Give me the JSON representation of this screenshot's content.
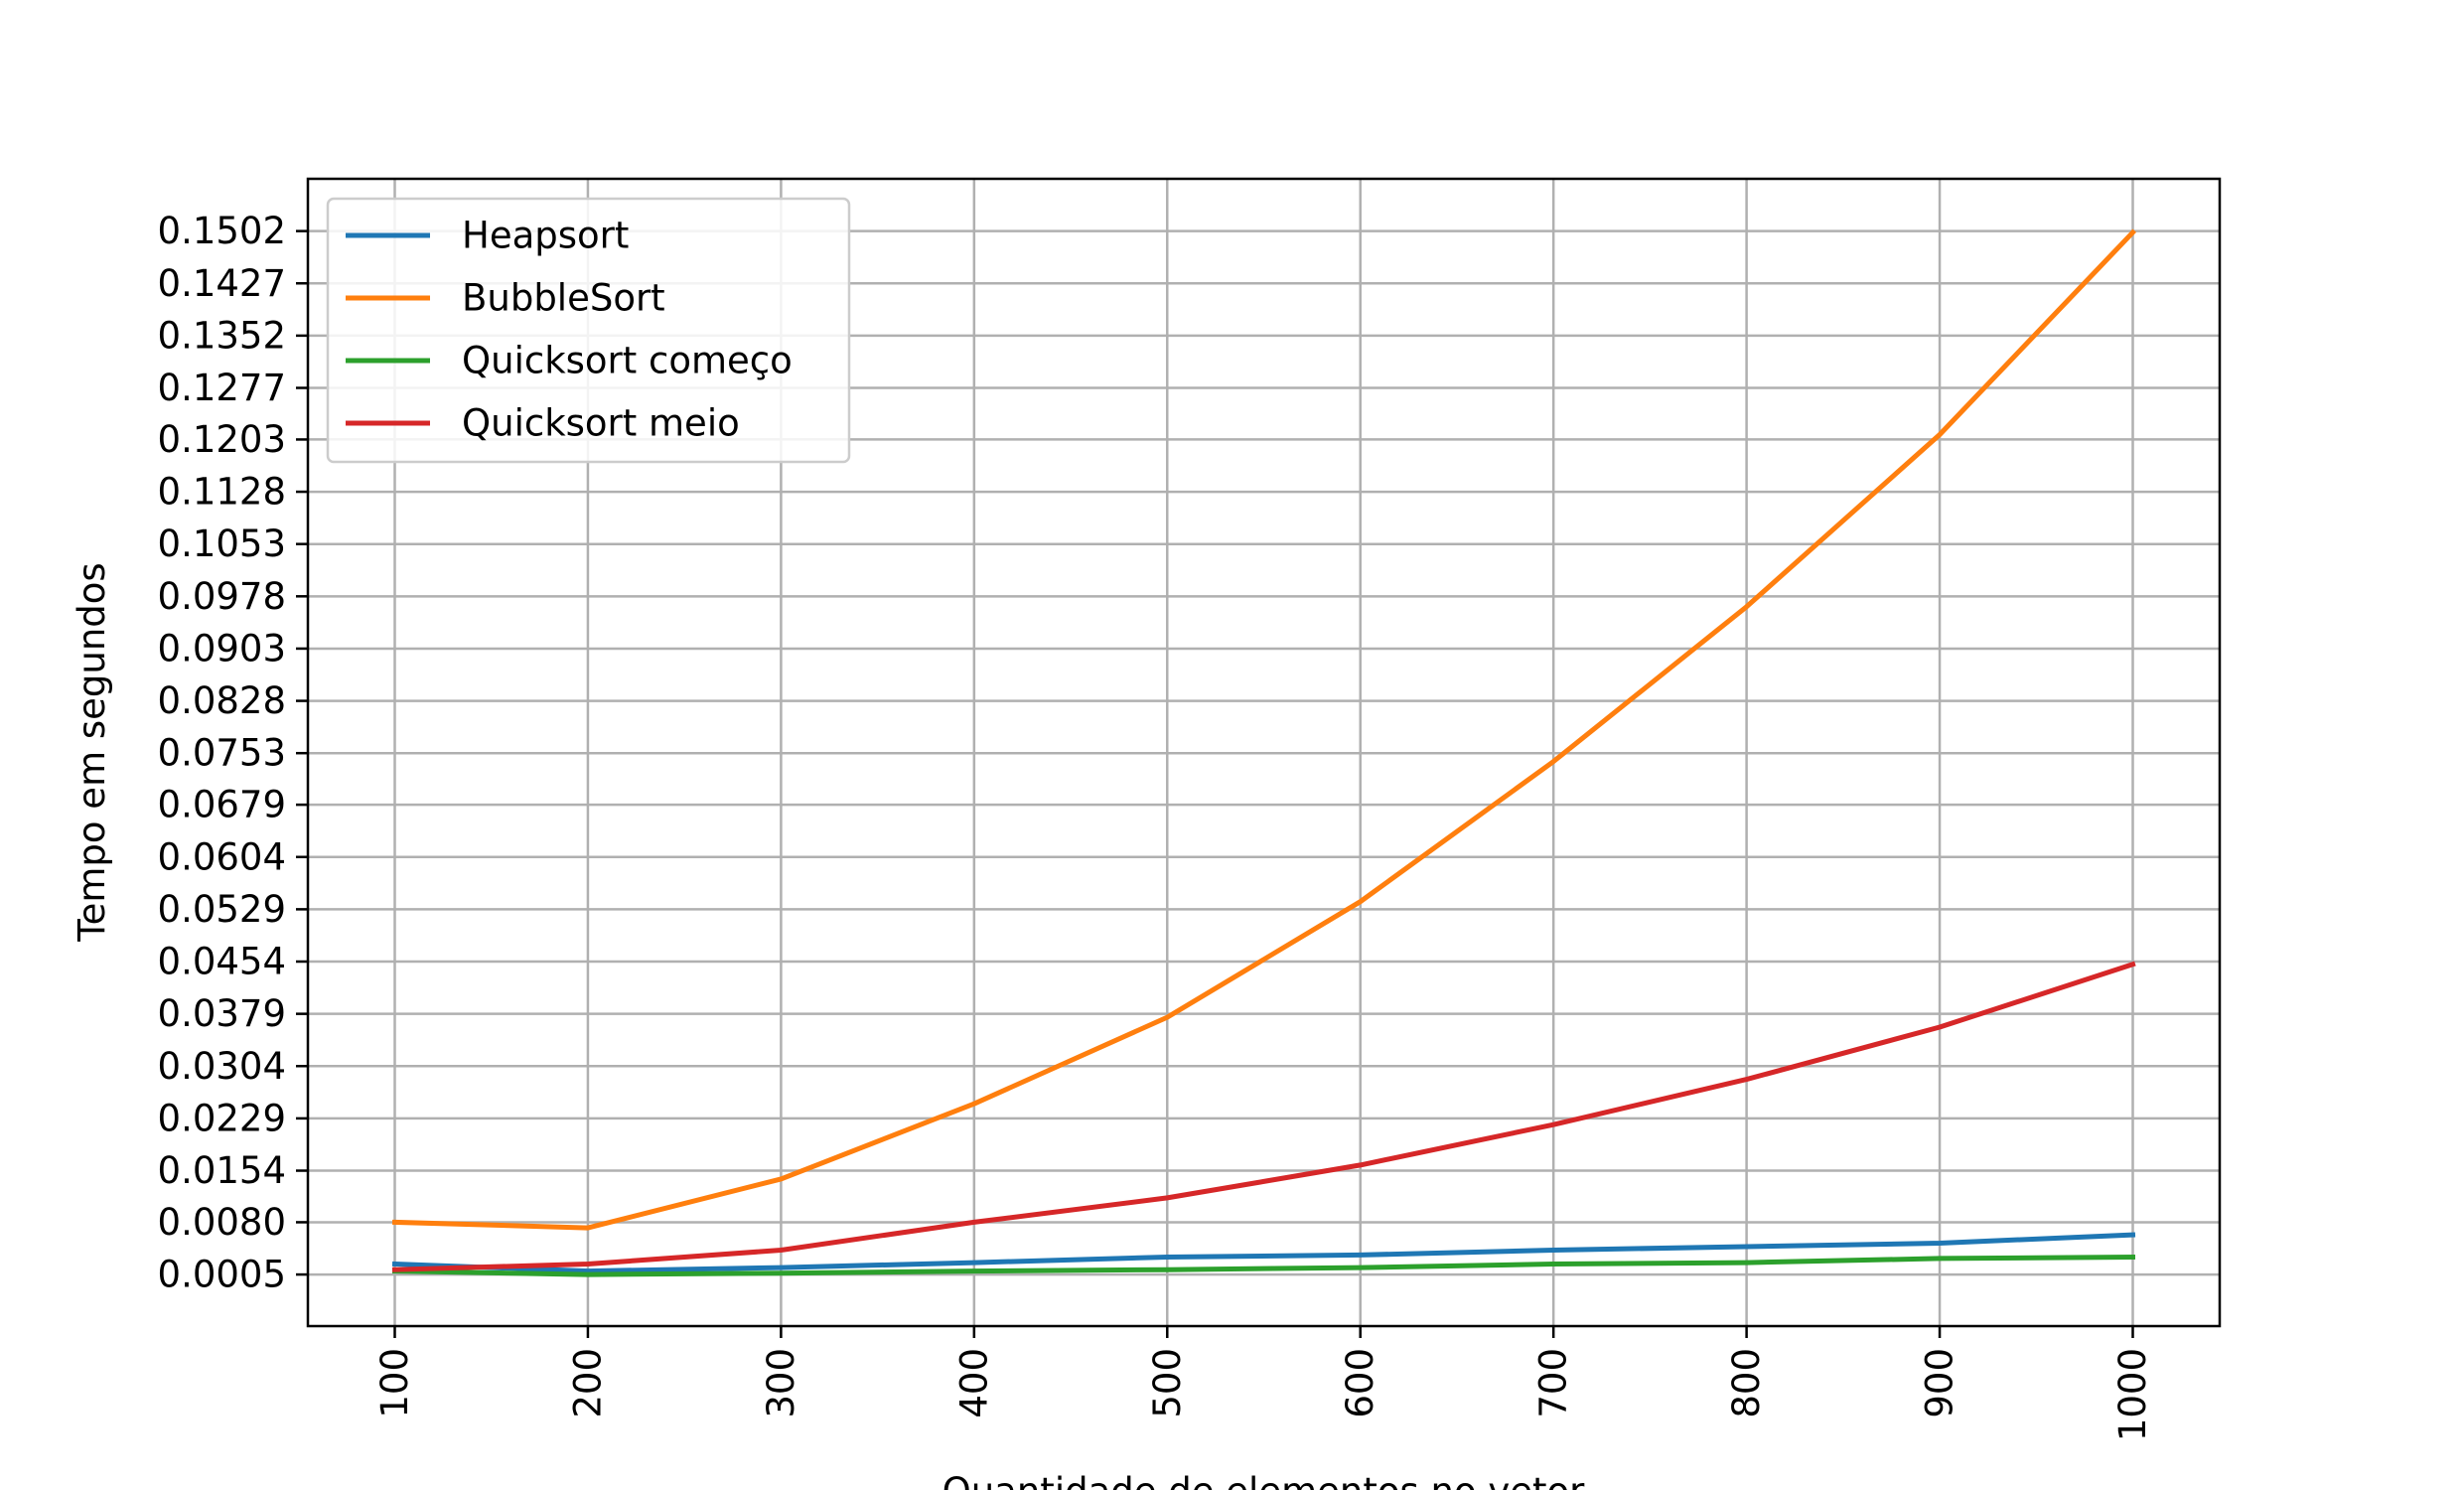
{
  "chart_data": {
    "type": "line",
    "title": "",
    "xlabel": "Quantidade de elementos no vetor",
    "ylabel": "Tempo em segundos",
    "x": [
      100,
      200,
      300,
      400,
      500,
      600,
      700,
      800,
      900,
      1000
    ],
    "x_tick_labels": [
      "100",
      "200",
      "300",
      "400",
      "500",
      "600",
      "700",
      "800",
      "900",
      "1000"
    ],
    "y_ticks": [
      0.0005,
      0.008,
      0.0154,
      0.0229,
      0.0304,
      0.0379,
      0.0454,
      0.0529,
      0.0604,
      0.0679,
      0.0753,
      0.0828,
      0.0903,
      0.0978,
      0.1053,
      0.1128,
      0.1203,
      0.1277,
      0.1352,
      0.1427,
      0.1502
    ],
    "y_tick_labels": [
      "0.0005",
      "0.0080",
      "0.0154",
      "0.0229",
      "0.0304",
      "0.0379",
      "0.0454",
      "0.0529",
      "0.0604",
      "0.0679",
      "0.0753",
      "0.0828",
      "0.0903",
      "0.0978",
      "0.1053",
      "0.1128",
      "0.1203",
      "0.1277",
      "0.1352",
      "0.1427",
      "0.1502"
    ],
    "xlim": [
      55,
      1045
    ],
    "ylim": [
      -0.0069,
      0.1577
    ],
    "grid": true,
    "legend_position": "top-left",
    "series": [
      {
        "name": "Heapsort",
        "color": "#1f77b4",
        "values": [
          0.002,
          0.001,
          0.0015,
          0.0022,
          0.003,
          0.0033,
          0.004,
          0.0045,
          0.005,
          0.0062
        ]
      },
      {
        "name": "BubbleSort",
        "color": "#ff7f0e",
        "values": [
          0.008,
          0.0072,
          0.0142,
          0.025,
          0.0374,
          0.054,
          0.0741,
          0.0963,
          0.121,
          0.15
        ]
      },
      {
        "name": "Quicksort começo",
        "color": "#2ca02c",
        "values": [
          0.001,
          0.0005,
          0.0007,
          0.001,
          0.0012,
          0.0015,
          0.002,
          0.0022,
          0.0028,
          0.003
        ]
      },
      {
        "name": "Quicksort meio",
        "color": "#d62728",
        "values": [
          0.0012,
          0.002,
          0.004,
          0.008,
          0.0115,
          0.0162,
          0.022,
          0.0285,
          0.036,
          0.045
        ]
      }
    ]
  }
}
